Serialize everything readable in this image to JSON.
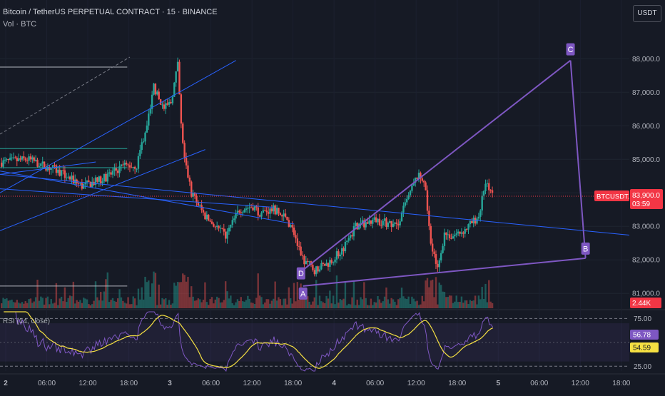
{
  "header": {
    "title": "Bitcoin / TetherUS PERPETUAL CONTRACT · 15 · BINANCE",
    "volume_label": "Vol · BTC",
    "currency_button": "USDT"
  },
  "rsi_panel": {
    "label": "RSI (14, close)"
  },
  "colors": {
    "background": "#161a25",
    "up": "#26a69a",
    "down": "#ef5350",
    "trendline": "#2962ff",
    "pattern": "#7e57c2",
    "rsi_line": "#7e57c2",
    "rsi_ma": "#f5e042",
    "price_tag": "#f23645"
  },
  "chart_data": [
    {
      "type": "candlestick",
      "title": "Bitcoin / TetherUS PERPETUAL CONTRACT · 15 · BINANCE",
      "ylim": [
        80600,
        88900
      ],
      "y_ticks": [
        "81,000.0",
        "82,000.0",
        "83,000.0",
        "84,000.0",
        "85,000.0",
        "86,000.0",
        "87,000.0",
        "88,000.0"
      ],
      "x_ticks": [
        "2",
        "06:00",
        "12:00",
        "18:00",
        "3",
        "06:00",
        "12:00",
        "18:00",
        "4",
        "06:00",
        "12:00",
        "18:00",
        "5",
        "06:00",
        "12:00",
        "18:00"
      ],
      "close_path": {
        "x": [
          0,
          4,
          8,
          12,
          15,
          18,
          20,
          22,
          22.5,
          23,
          24,
          25,
          26,
          26.5,
          27,
          28,
          30,
          33,
          35,
          37,
          38,
          40,
          42,
          43,
          44,
          46,
          48,
          50,
          52,
          55,
          58,
          61,
          62,
          63,
          64,
          65,
          66,
          68,
          69,
          70,
          71,
          72
        ],
        "y": [
          84900,
          85000,
          84700,
          84200,
          84400,
          84800,
          84800,
          86500,
          87200,
          86900,
          86500,
          86700,
          87800,
          86000,
          85000,
          84000,
          83300,
          82700,
          83500,
          83600,
          83400,
          83500,
          83200,
          82800,
          82100,
          81700,
          81900,
          82300,
          83000,
          83200,
          83000,
          84500,
          84400,
          82600,
          81700,
          82800,
          82700,
          82900,
          83100,
          83300,
          84300,
          83900
        ]
      },
      "current_price": {
        "symbol": "BTCUSDT.P",
        "price": "83,900.0",
        "countdown": "03:59"
      },
      "volume_tag": "2.44K",
      "pattern_points": [
        {
          "label": "A",
          "x": 44.3,
          "y": 81220
        },
        {
          "label": "D",
          "x": 44.0,
          "y": 81650
        },
        {
          "label": "C",
          "x": 83.4,
          "y": 87950
        },
        {
          "label": "B",
          "x": 85.6,
          "y": 82050
        }
      ],
      "pattern_lines": [
        {
          "from": [
            44.0,
            81650
          ],
          "to": [
            63.3,
            84750
          ]
        },
        {
          "from": [
            44.3,
            81220
          ],
          "to": [
            85.6,
            82050
          ]
        },
        {
          "from": [
            63.3,
            84750
          ],
          "to": [
            83.4,
            87950
          ]
        },
        {
          "from": [
            83.4,
            87950
          ],
          "to": [
            85.6,
            82050
          ]
        }
      ],
      "trend_lines": [
        {
          "from": [
            0,
            84000
          ],
          "to": [
            34.5,
            87950
          ]
        },
        {
          "from": [
            0,
            82870
          ],
          "to": [
            30,
            85290
          ]
        },
        {
          "from": [
            0,
            84650
          ],
          "to": [
            43,
            83070
          ]
        },
        {
          "from": [
            0,
            84550
          ],
          "to": [
            92,
            82740
          ]
        },
        {
          "from": [
            0,
            84550
          ],
          "to": [
            14,
            84920
          ]
        },
        {
          "from": [
            0,
            84120
          ],
          "to": [
            40,
            83570
          ]
        }
      ],
      "horizontal_lines": [
        {
          "from": [
            0,
            87750
          ],
          "to": [
            18.6,
            87750
          ]
        },
        {
          "from": [
            0,
            81220
          ],
          "to": [
            18.6,
            81220
          ]
        },
        {
          "from": [
            0,
            85320
          ],
          "to": [
            18.6,
            85320
          ]
        },
        {
          "from": [
            0,
            84750
          ],
          "to": [
            18.6,
            84750
          ]
        }
      ]
    },
    {
      "type": "line",
      "title": "RSI (14, close)",
      "ylim": [
        20,
        82
      ],
      "y_ticks": [
        "75.00",
        "25.00"
      ],
      "band": [
        30,
        70
      ],
      "rsi_value": "56.78",
      "ma_value": "54.59"
    }
  ]
}
